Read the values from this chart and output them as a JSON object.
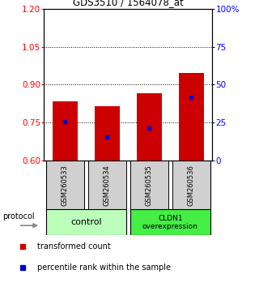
{
  "title": "GDS3510 / 1564078_at",
  "samples": [
    "GSM260533",
    "GSM260534",
    "GSM260535",
    "GSM260536"
  ],
  "bar_bottoms": [
    0.6,
    0.6,
    0.6,
    0.6
  ],
  "bar_tops": [
    0.835,
    0.815,
    0.865,
    0.945
  ],
  "percentile_values": [
    0.755,
    0.695,
    0.73,
    0.85
  ],
  "ylim_left": [
    0.6,
    1.2
  ],
  "ylim_right": [
    0,
    100
  ],
  "yticks_left": [
    0.6,
    0.75,
    0.9,
    1.05,
    1.2
  ],
  "yticks_right": [
    0,
    25,
    50,
    75,
    100
  ],
  "ytick_labels_right": [
    "0",
    "25",
    "50",
    "75",
    "100%"
  ],
  "hlines": [
    0.75,
    0.9,
    1.05
  ],
  "bar_color": "#cc0000",
  "percentile_color": "#0000cc",
  "control_color": "#bbffbb",
  "cldn1_color": "#44ee44",
  "bar_width": 0.6,
  "x_positions": [
    0,
    1,
    2,
    3
  ]
}
